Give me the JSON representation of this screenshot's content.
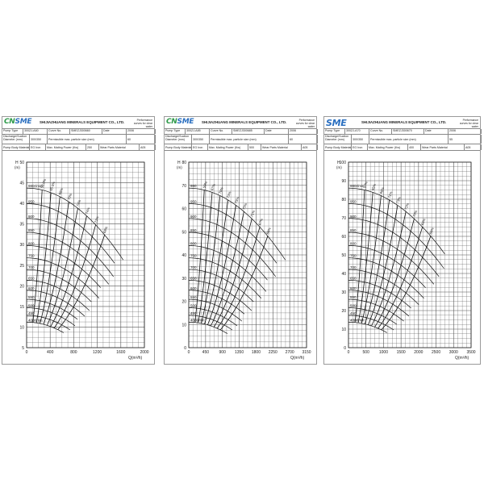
{
  "company": "SHIJIAZHUANG MINERALS EQUIPMENT CO., LTD.",
  "performance_note": "Performance curves for clear water",
  "labels": {
    "pump_type": "Pump Type",
    "curve_no": "Curve No.",
    "date": "Date",
    "discharge": "Discharge/Suction Diameter (mm)",
    "particle": "Permissible max. particle size (mm)",
    "material": "Pump Body Material",
    "power": "Max. Mating Power (Kw)",
    "wear": "Wear Parts Material"
  },
  "colors": {
    "logo_green": "#2e9a4a",
    "logo_blue": "#2a6fc0",
    "grid": "#555555",
    "curve": "#111111"
  },
  "chart_data": [
    {
      "type": "line",
      "logo": "CNSME",
      "header": {
        "pump_type": "300ZJ-A60",
        "curve_no": "SMEZJ300660",
        "date": "2006",
        "discharge": "300/350",
        "particle": "60",
        "material": "EG Iron",
        "power": "250",
        "wear": "A05"
      },
      "ylabel": "H",
      "yunit": "(m)",
      "xlabel": "Q(m³/h)",
      "ylim": [
        5,
        50
      ],
      "yticks": [
        5,
        10,
        15,
        20,
        25,
        30,
        35,
        40,
        45,
        50
      ],
      "xlim": [
        0,
        2000
      ],
      "xticks": [
        0,
        400,
        800,
        1200,
        1600,
        2000
      ],
      "speed_labels": [
        "980r/min",
        "950",
        "900",
        "850",
        "800",
        "750",
        "700",
        "650",
        "600",
        "550",
        "500",
        "450",
        "400r/min"
      ],
      "eff_labels": [
        "58.0%",
        "65.5%",
        "68%",
        "70%",
        "74%",
        "74%",
        "71%",
        "68%"
      ],
      "grid": true
    },
    {
      "type": "line",
      "logo": "CNSME",
      "header": {
        "pump_type": "300ZJ-A85",
        "curve_no": "SMEZJ300685",
        "date": "2006",
        "discharge": "300/350",
        "particle": "60",
        "material": "EG Iron",
        "power": "500",
        "wear": "A05"
      },
      "ylabel": "H",
      "yunit": "(m)",
      "xlabel": "Q(m³/h)",
      "ylim": [
        0,
        80
      ],
      "yticks": [
        0,
        10,
        20,
        30,
        40,
        50,
        60,
        70,
        80
      ],
      "xlim": [
        0,
        3150
      ],
      "xticks": [
        0,
        450,
        900,
        1350,
        1800,
        2250,
        2700,
        3150
      ],
      "speed_labels": [
        "980",
        "950",
        "900",
        "850",
        "800",
        "750",
        "700",
        "650",
        "600",
        "550",
        "500",
        "450",
        "400r/min"
      ],
      "eff_labels": [
        "59%",
        "67%",
        "70%",
        "73%",
        "75%",
        "75%",
        "71%",
        "67%",
        "60%"
      ],
      "grid": true
    },
    {
      "type": "line",
      "logo": "SME",
      "header": {
        "pump_type": "300ZJ-A70",
        "curve_no": "SMEZJ300670",
        "date": "2006",
        "discharge": "300/350",
        "particle": "55",
        "material": "EG Iron",
        "power": "400",
        "wear": "A05"
      },
      "ylabel": "H",
      "yunit": "(m)",
      "xlabel": "Q(m³/h)",
      "ylim": [
        0,
        100
      ],
      "yticks": [
        0,
        10,
        20,
        30,
        40,
        50,
        60,
        70,
        80,
        90,
        100
      ],
      "xlim": [
        0,
        3500
      ],
      "xticks": [
        0,
        500,
        1000,
        1500,
        2000,
        2500,
        3000,
        3500
      ],
      "speed_labels": [
        "980r/min",
        "950",
        "900",
        "850",
        "800",
        "750",
        "700",
        "650",
        "600",
        "550",
        "500",
        "450",
        "400r/min"
      ],
      "eff_labels": [
        "57%",
        "65%",
        "68%",
        "71%",
        "73%",
        "72%",
        "70%",
        "65%",
        "60%"
      ],
      "grid": true
    }
  ]
}
